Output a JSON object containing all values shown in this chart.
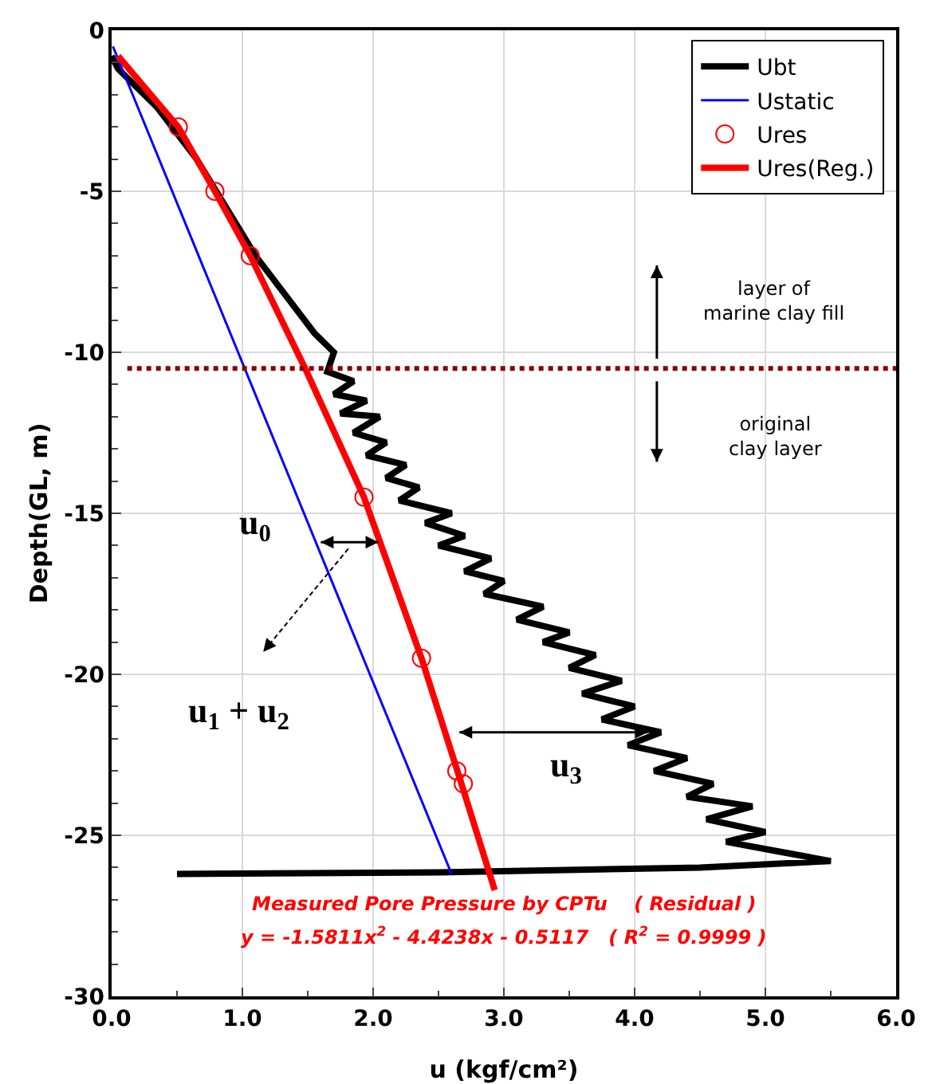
{
  "chart_data": {
    "type": "line",
    "xlabel": "u (kgf/cm²)",
    "ylabel": "Depth(GL, m)",
    "xlim": [
      0,
      6
    ],
    "xticks": [
      {
        "value": 0,
        "label": "0.0"
      },
      {
        "value": 1,
        "label": "1.0"
      },
      {
        "value": 2,
        "label": "2.0"
      },
      {
        "value": 3,
        "label": "3.0"
      },
      {
        "value": 4,
        "label": "4.0"
      },
      {
        "value": 5,
        "label": "5.0"
      },
      {
        "value": 6,
        "label": "6.0"
      }
    ],
    "ylim": [
      -30,
      0
    ],
    "yticks": [
      -30,
      -25,
      -20,
      -15,
      -10,
      -5,
      0
    ],
    "grid": true,
    "legend": "top right",
    "series": [
      {
        "name": "Ubt",
        "color": "#000000",
        "line_style": "solid",
        "marker": "none",
        "x": [
          0.0,
          0.05,
          0.2,
          0.35,
          0.5,
          0.65,
          0.8,
          0.95,
          1.1,
          1.25,
          1.4,
          1.55,
          1.7,
          1.65,
          1.85,
          1.7,
          1.95,
          1.75,
          2.05,
          1.85,
          2.1,
          1.95,
          2.25,
          2.1,
          2.35,
          2.2,
          2.6,
          2.4,
          2.7,
          2.5,
          2.9,
          2.7,
          3.0,
          2.85,
          3.3,
          3.1,
          3.5,
          3.3,
          3.7,
          3.5,
          3.9,
          3.6,
          4.0,
          3.75,
          4.2,
          3.95,
          4.4,
          4.15,
          4.6,
          4.4,
          4.9,
          4.55,
          5.0,
          4.7,
          5.1,
          5.5,
          4.5,
          2.5,
          0.5
        ],
        "values": [
          -0.8,
          -1.2,
          -1.8,
          -2.4,
          -3.2,
          -4.0,
          -5.0,
          -6.0,
          -7.0,
          -7.8,
          -8.6,
          -9.4,
          -10.0,
          -10.6,
          -10.9,
          -11.3,
          -11.5,
          -11.9,
          -12.0,
          -12.5,
          -12.8,
          -13.2,
          -13.5,
          -13.9,
          -14.2,
          -14.6,
          -15.0,
          -15.3,
          -15.7,
          -16.0,
          -16.4,
          -16.8,
          -17.1,
          -17.5,
          -17.9,
          -18.3,
          -18.7,
          -19.0,
          -19.4,
          -19.8,
          -20.2,
          -20.6,
          -21.0,
          -21.4,
          -21.8,
          -22.2,
          -22.6,
          -23.0,
          -23.4,
          -23.8,
          -24.1,
          -24.5,
          -24.9,
          -25.2,
          -25.5,
          -25.8,
          -26.0,
          -26.15,
          -26.2
        ]
      },
      {
        "name": "Ustatic",
        "color": "#0000ff",
        "line_style": "solid",
        "marker": "none",
        "x": [
          0.01,
          2.6
        ],
        "values": [
          -0.5,
          -26.2
        ]
      },
      {
        "name": "Ures",
        "type": "scatter",
        "color": "#ff0000",
        "marker": "circle",
        "x": [
          0.51,
          0.79,
          1.06,
          1.93,
          2.37,
          2.64,
          2.69
        ],
        "values": [
          -3.0,
          -5.0,
          -7.0,
          -14.5,
          -19.5,
          -23.0,
          -23.4
        ]
      },
      {
        "name": "Ures(Reg.)",
        "color": "#ff0000",
        "line_style": "solid",
        "marker": "none",
        "x": [
          0.05,
          0.3,
          0.51,
          0.79,
          1.06,
          1.48,
          1.93,
          2.37,
          2.66,
          2.93
        ],
        "values": [
          -0.8,
          -2.0,
          -3.0,
          -5.0,
          -7.0,
          -10.5,
          -14.5,
          -19.5,
          -23.2,
          -26.7
        ]
      }
    ],
    "ref_lines": [
      {
        "axis": "y",
        "value": -10.5,
        "color": "#8b0000",
        "line_style": "dotted"
      }
    ],
    "annotations": [
      "layer of\nmarine clay fill",
      "original\nclay layer",
      "u$_{0}$",
      "u$_{1}$ + u$_{2}$",
      "u$_{3}$",
      "Measured Pore Pressure by CPTu    ( Residual )",
      "y = -1.5811x$^{2}$ - 4.4238x - 0.5117   ( R$^{2}$ = 0.9999 )"
    ]
  }
}
